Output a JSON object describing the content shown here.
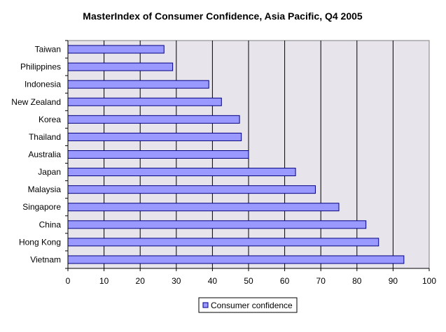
{
  "chart_data": {
    "type": "bar",
    "orientation": "horizontal",
    "title": "MasterIndex of Consumer Confidence, Asia Pacific, Q4 2005",
    "xlabel": "",
    "ylabel": "",
    "categories": [
      "Taiwan",
      "Philippines",
      "Indonesia",
      "New Zealand",
      "Korea",
      "Thailand",
      "Australia",
      "Japan",
      "Malaysia",
      "Singapore",
      "China",
      "Hong Kong",
      "Vietnam"
    ],
    "series": [
      {
        "name": "Consumer confidence",
        "values": [
          26.6,
          29.0,
          39.0,
          42.5,
          47.5,
          48.0,
          50.0,
          63.0,
          68.5,
          75.0,
          82.5,
          86.0,
          93.0
        ]
      }
    ],
    "xlim": [
      0,
      100
    ],
    "x_ticks": [
      "0",
      "10",
      "20",
      "30",
      "40",
      "50",
      "60",
      "70",
      "80",
      "90",
      "100"
    ],
    "grid": "vertical",
    "legend_position": "bottom",
    "colors": {
      "bar_fill": "#9999ff",
      "bar_stroke": "#000080",
      "plot_bg": "#e8e4ec",
      "grid": "#000000"
    }
  }
}
